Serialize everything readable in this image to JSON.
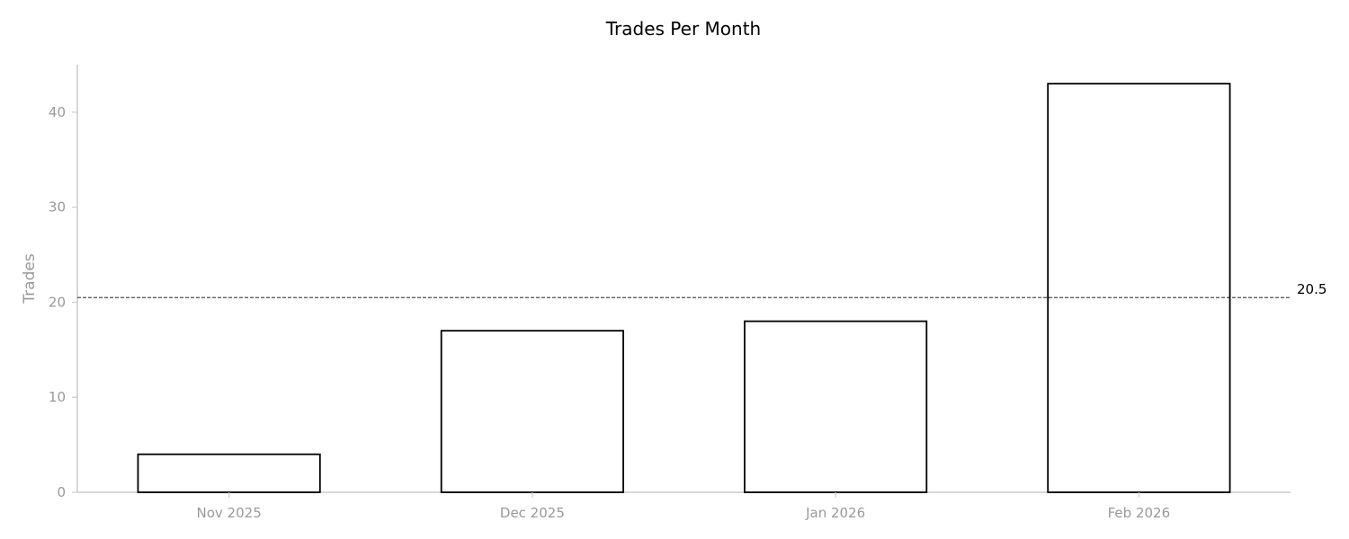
{
  "chart_data": {
    "type": "bar",
    "title": "Trades Per Month",
    "xlabel": "",
    "ylabel": "Trades",
    "categories": [
      "Nov 2025",
      "Dec 2025",
      "Jan 2026",
      "Feb 2026"
    ],
    "values": [
      4,
      17,
      18,
      43
    ],
    "ylim": [
      0,
      45
    ],
    "yticks": [
      0,
      10,
      20,
      30,
      40
    ],
    "reference_line": {
      "value": 20.5,
      "label": "20.5",
      "style": "dashed"
    },
    "grid": false,
    "legend": "none",
    "colors": {
      "bar_fill": "#ffffff",
      "bar_stroke": "#000000",
      "axis": "#cccccc",
      "tick_text": "#999999",
      "reference_line": "#000000"
    }
  }
}
